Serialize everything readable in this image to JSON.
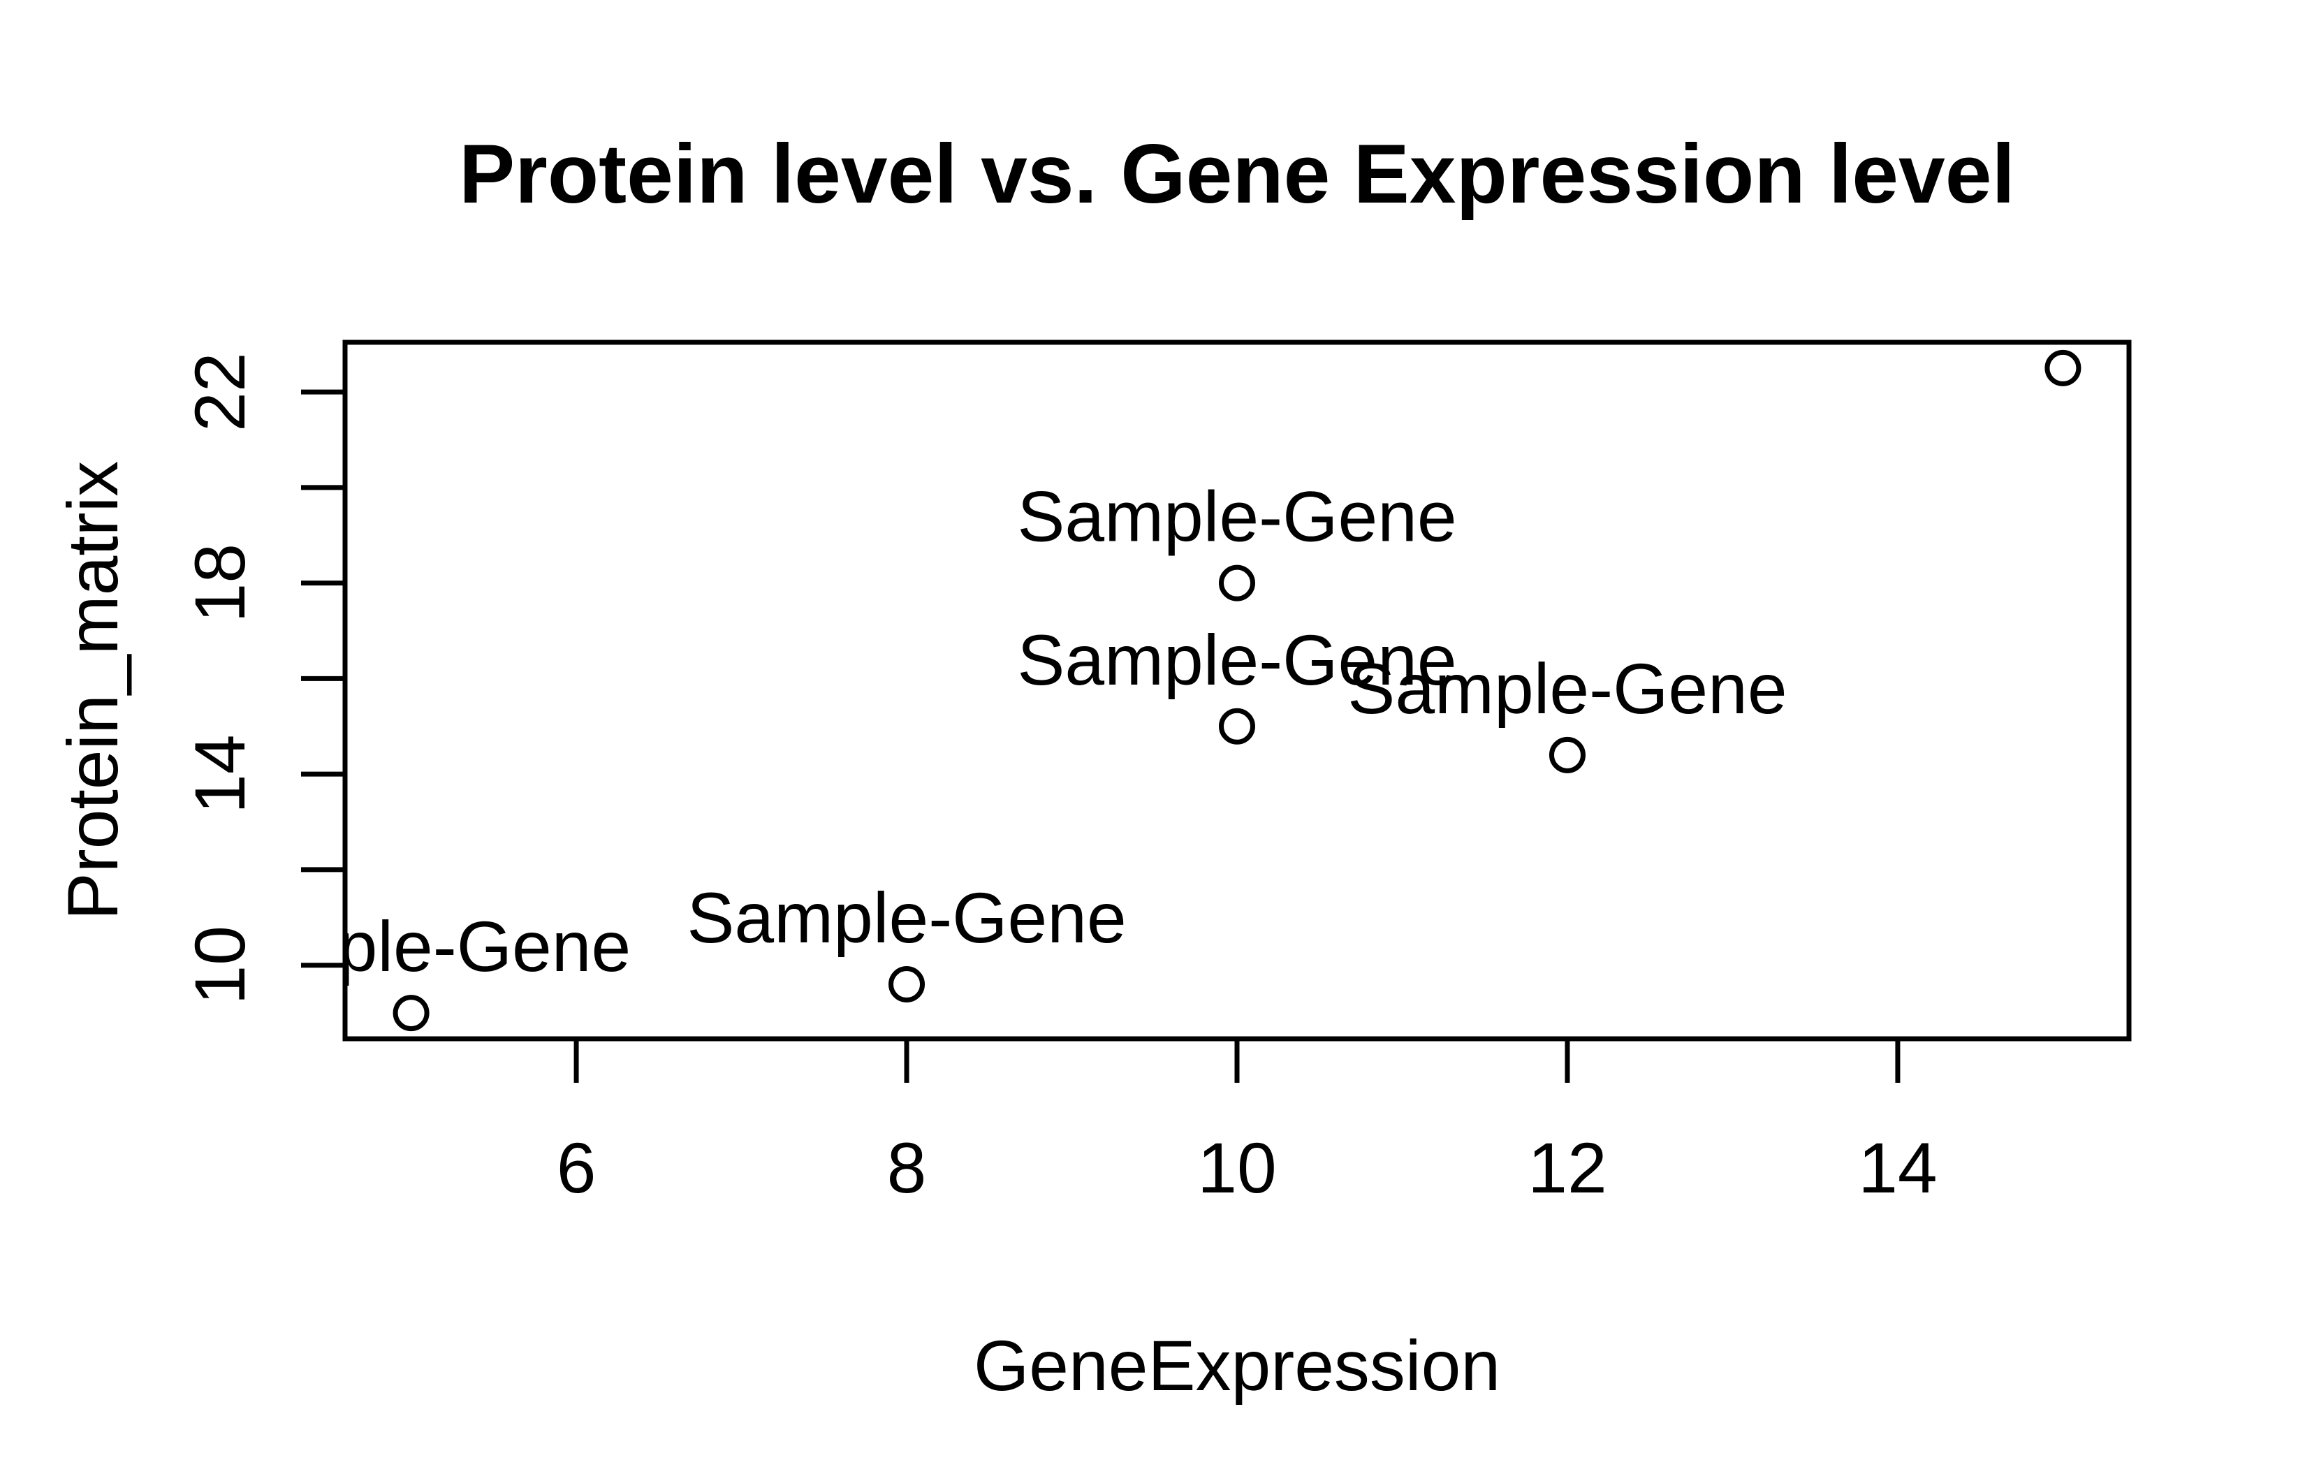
{
  "figure": {
    "background": "#ffffff",
    "foreground": "#000000"
  },
  "chart_data": {
    "type": "scatter",
    "title": "Protein level vs. Gene Expression level",
    "xlabel": "GeneExpression",
    "ylabel": "Protein_matrix",
    "x": [
      5,
      8,
      10,
      10,
      12,
      15
    ],
    "y": [
      9,
      9.6,
      18,
      15,
      14.4,
      22.5
    ],
    "point_labels": [
      "Sample-Gene",
      "Sample-Gene",
      "Sample-Gene",
      "Sample-Gene",
      "Sample-Gene",
      "Sample-Gene"
    ],
    "marker": "open-circle",
    "grid": false,
    "legend": "none",
    "xlim": [
      4.6,
      15.4
    ],
    "ylim": [
      8.46,
      23.04
    ],
    "x_ticks": [
      6,
      8,
      10,
      12,
      14
    ],
    "x_tick_labels": [
      "6",
      "8",
      "10",
      "12",
      "14"
    ],
    "y_ticks": [
      10,
      12,
      14,
      16,
      18,
      20,
      22
    ],
    "y_tick_labels": [
      "10",
      "",
      "14",
      "",
      "18",
      "",
      "22"
    ],
    "colors": {
      "stroke": "#000000",
      "background": "#ffffff"
    }
  }
}
